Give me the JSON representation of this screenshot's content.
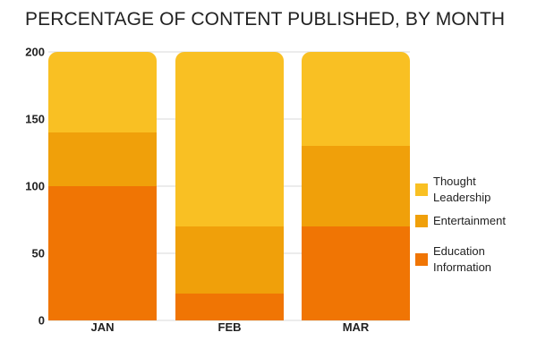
{
  "chart_data": {
    "type": "bar",
    "stacked": true,
    "title": "PERCENTAGE OF CONTENT PUBLISHED, BY MONTH",
    "categories": [
      "JAN",
      "FEB",
      "MAR"
    ],
    "series": [
      {
        "name": "Education Information",
        "color": "#F07504",
        "values": [
          100,
          20,
          70
        ]
      },
      {
        "name": "Entertainment",
        "color": "#F0A00A",
        "values": [
          40,
          50,
          60
        ]
      },
      {
        "name": "Thought Leadership",
        "color": "#F9C023",
        "values": [
          60,
          130,
          70
        ]
      }
    ],
    "ylim": [
      0,
      200
    ],
    "yticks": [
      0,
      50,
      100,
      150,
      200
    ],
    "grid": true,
    "legend_position": "right"
  }
}
